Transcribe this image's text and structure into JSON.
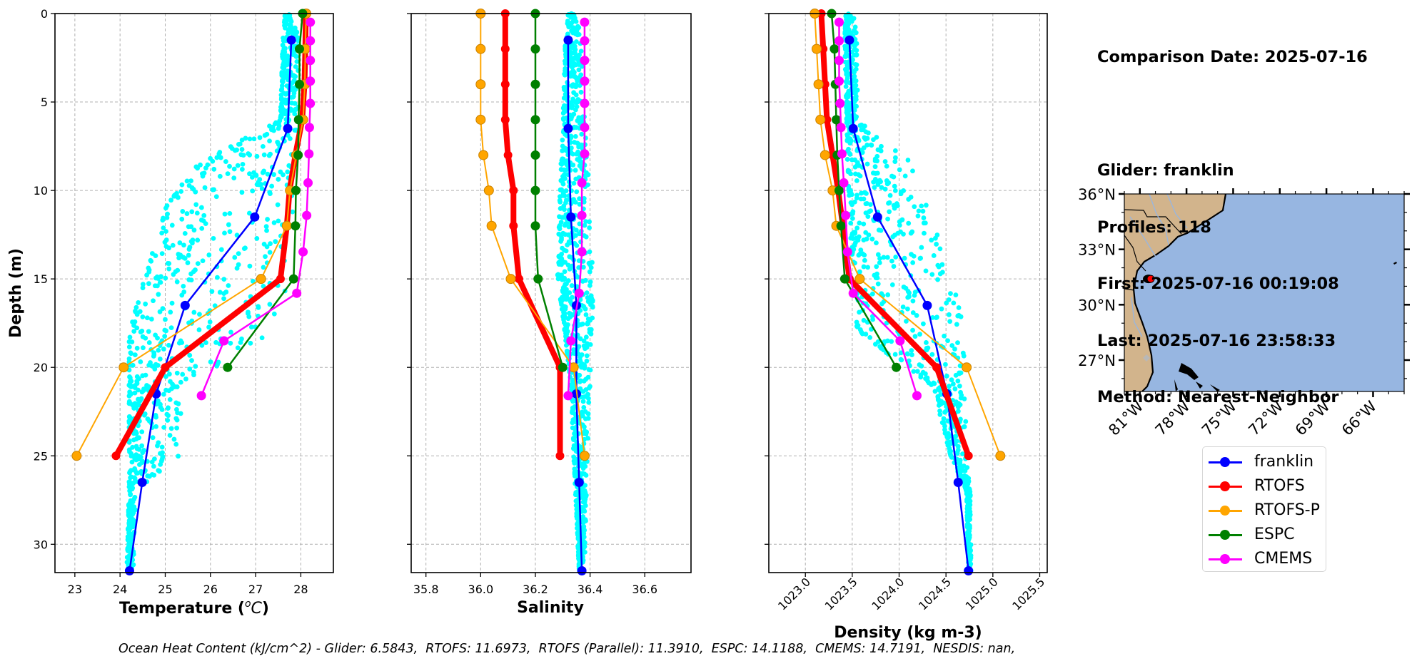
{
  "info": {
    "comparison_date": "Comparison Date: 2025-07-16",
    "glider": "Glider: franklin",
    "profiles": "Profiles: 118",
    "first": "First: 2025-07-16 00:19:08",
    "last": "Last: 2025-07-16 23:58:33",
    "method": "Method: Nearest-Neighbor"
  },
  "footnote": "Ocean Heat Content (kJ/cm^2) - Glider: 6.5843,  RTOFS: 11.6973,  RTOFS (Parallel): 11.3910,  ESPC: 14.1188,  CMEMS: 14.7191,  NESDIS: nan,",
  "legend": [
    {
      "name": "franklin",
      "color": "#0000ff"
    },
    {
      "name": "RTOFS",
      "color": "#ff0000"
    },
    {
      "name": "RTOFS-P",
      "color": "#ffa500"
    },
    {
      "name": "ESPC",
      "color": "#008000"
    },
    {
      "name": "CMEMS",
      "color": "#ff00ff"
    }
  ],
  "colors": {
    "glider_obs": "#00ffff",
    "grid": "#b0b0b0",
    "ocean": "#97b6e1",
    "land": "#d2b48c",
    "rivers": "#97b6e1",
    "glider_marker": "#ff0000"
  },
  "map": {
    "lat_ticks": [
      "36°N",
      "33°N",
      "30°N",
      "27°N"
    ],
    "lat_values": [
      36,
      33,
      30,
      27
    ],
    "lon_ticks": [
      "81°W",
      "78°W",
      "75°W",
      "72°W",
      "69°W",
      "66°W"
    ],
    "lon_values": [
      -81,
      -78,
      -75,
      -72,
      -69,
      -66
    ],
    "extent": {
      "lon_min": -82.0,
      "lon_max": -64.0,
      "lat_min": 25.3,
      "lat_max": 36.0
    },
    "glider_position": {
      "lat": 31.4,
      "lon": -80.3
    }
  },
  "chart_data": [
    {
      "type": "line",
      "panel": "temperature",
      "xlabel": "Temperature (°C)",
      "xlabel_main": "Temperature (",
      "xlabel_unit": "oC",
      "ylabel": "Depth (m)",
      "xlim": [
        22.56,
        28.72
      ],
      "ylim": [
        31.6,
        0
      ],
      "xticks": [
        23,
        24,
        25,
        26,
        27,
        28
      ],
      "xtick_labels": [
        "23",
        "24",
        "25",
        "26",
        "27",
        "28"
      ],
      "yticks": [
        0,
        5,
        10,
        15,
        20,
        25,
        30
      ],
      "ytick_labels": [
        "0",
        "5",
        "10",
        "15",
        "20",
        "25",
        "30"
      ],
      "grid": true,
      "scatter_envelope": [
        {
          "depth": 0.0,
          "min": 27.65,
          "max": 27.95
        },
        {
          "depth": 1.5,
          "min": 27.6,
          "max": 27.95
        },
        {
          "depth": 6.0,
          "min": 27.55,
          "max": 27.95
        },
        {
          "depth": 8.5,
          "min": 25.7,
          "max": 27.9
        },
        {
          "depth": 11.0,
          "min": 25.0,
          "max": 27.9
        },
        {
          "depth": 14.5,
          "min": 24.6,
          "max": 27.8
        },
        {
          "depth": 18.0,
          "min": 24.2,
          "max": 27.5
        },
        {
          "depth": 21.0,
          "min": 24.2,
          "max": 25.4
        },
        {
          "depth": 25.0,
          "min": 24.2,
          "max": 25.3
        },
        {
          "depth": 27.0,
          "min": 24.2,
          "max": 24.35
        },
        {
          "depth": 31.5,
          "min": 24.15,
          "max": 24.3
        }
      ],
      "series": [
        {
          "name": "franklin",
          "depth": [
            1.5,
            6.5,
            11.5,
            16.5,
            21.5,
            26.5,
            31.5
          ],
          "values": [
            27.79,
            27.71,
            26.98,
            25.44,
            24.8,
            24.49,
            24.21
          ]
        },
        {
          "name": "RTOFS",
          "depth": [
            0,
            2,
            4,
            6,
            8,
            10,
            12,
            15,
            20,
            25
          ],
          "values": [
            28.11,
            28.1,
            28.08,
            28.03,
            27.88,
            27.75,
            27.69,
            27.55,
            25.0,
            23.91
          ]
        },
        {
          "name": "RTOFS-P",
          "depth": [
            0,
            2,
            4,
            6,
            8,
            10,
            12,
            15,
            20,
            25
          ],
          "values": [
            28.12,
            28.1,
            28.09,
            28.05,
            27.9,
            27.76,
            27.69,
            27.12,
            24.08,
            23.04
          ]
        },
        {
          "name": "ESPC",
          "depth": [
            0,
            2,
            4,
            6,
            8,
            10,
            12,
            15,
            20
          ],
          "values": [
            28.04,
            27.97,
            27.97,
            27.95,
            27.94,
            27.89,
            27.88,
            27.84,
            26.38
          ]
        },
        {
          "name": "CMEMS",
          "depth": [
            0.49,
            1.54,
            2.65,
            3.82,
            5.08,
            6.44,
            7.93,
            9.57,
            11.41,
            13.47,
            15.81,
            18.5,
            21.6
          ],
          "values": [
            28.21,
            28.21,
            28.21,
            28.21,
            28.21,
            28.19,
            28.18,
            28.16,
            28.13,
            28.05,
            27.91,
            26.3,
            25.8
          ]
        }
      ]
    },
    {
      "type": "line",
      "panel": "salinity",
      "xlabel": "Salinity",
      "xlim": [
        35.746,
        36.769
      ],
      "ylim": [
        31.6,
        0
      ],
      "xticks": [
        35.8,
        36.0,
        36.2,
        36.4,
        36.6
      ],
      "xtick_labels": [
        "35.8",
        "36.0",
        "36.2",
        "36.4",
        "36.6"
      ],
      "yticks": [
        0,
        5,
        10,
        15,
        20,
        25,
        30
      ],
      "grid": true,
      "scatter_envelope": [
        {
          "depth": 0.0,
          "min": 36.32,
          "max": 36.36
        },
        {
          "depth": 1.5,
          "min": 36.31,
          "max": 36.37
        },
        {
          "depth": 6.0,
          "min": 36.3,
          "max": 36.38
        },
        {
          "depth": 10.0,
          "min": 36.29,
          "max": 36.4
        },
        {
          "depth": 15.0,
          "min": 36.28,
          "max": 36.41
        },
        {
          "depth": 17.0,
          "min": 36.3,
          "max": 36.41
        },
        {
          "depth": 21.0,
          "min": 36.33,
          "max": 36.4
        },
        {
          "depth": 25.0,
          "min": 36.34,
          "max": 36.39
        },
        {
          "depth": 31.5,
          "min": 36.36,
          "max": 36.38
        }
      ],
      "series": [
        {
          "name": "franklin",
          "depth": [
            1.5,
            6.5,
            11.5,
            16.5,
            21.5,
            26.5,
            31.5
          ],
          "values": [
            36.32,
            36.32,
            36.33,
            36.35,
            36.35,
            36.36,
            36.37
          ]
        },
        {
          "name": "RTOFS",
          "depth": [
            0,
            2,
            4,
            6,
            8,
            10,
            12,
            15,
            20,
            25
          ],
          "values": [
            36.09,
            36.09,
            36.09,
            36.09,
            36.1,
            36.12,
            36.12,
            36.14,
            36.29,
            36.29
          ]
        },
        {
          "name": "RTOFS-P",
          "depth": [
            0,
            2,
            4,
            6,
            8,
            10,
            12,
            15,
            20,
            25
          ],
          "values": [
            36.0,
            36.0,
            36.0,
            36.0,
            36.01,
            36.03,
            36.04,
            36.11,
            36.34,
            36.38
          ]
        },
        {
          "name": "ESPC",
          "depth": [
            0,
            2,
            4,
            6,
            8,
            10,
            12,
            15,
            20
          ],
          "values": [
            36.2,
            36.2,
            36.2,
            36.2,
            36.2,
            36.2,
            36.2,
            36.21,
            36.3
          ]
        },
        {
          "name": "CMEMS",
          "depth": [
            0.49,
            1.54,
            2.65,
            3.82,
            5.08,
            6.44,
            7.93,
            9.57,
            11.41,
            13.47,
            15.81,
            18.5,
            21.6
          ],
          "values": [
            36.38,
            36.38,
            36.38,
            36.38,
            36.38,
            36.38,
            36.38,
            36.37,
            36.37,
            36.37,
            36.36,
            36.33,
            36.32
          ]
        }
      ]
    },
    {
      "type": "line",
      "panel": "density",
      "xlabel": "Density (kg m-3)",
      "xlim": [
        1022.61,
        1025.58
      ],
      "ylim": [
        31.6,
        0
      ],
      "xticks": [
        1023.0,
        1023.5,
        1024.0,
        1024.5,
        1025.0,
        1025.5
      ],
      "xtick_labels": [
        "1023.0",
        "1023.5",
        "1024.0",
        "1024.5",
        "1025.0",
        "1025.5"
      ],
      "yticks": [
        0,
        5,
        10,
        15,
        20,
        25,
        30
      ],
      "grid": true,
      "scatter_envelope": [
        {
          "depth": 0.0,
          "min": 1023.43,
          "max": 1023.52
        },
        {
          "depth": 1.5,
          "min": 1023.42,
          "max": 1023.55
        },
        {
          "depth": 6.0,
          "min": 1023.44,
          "max": 1023.56
        },
        {
          "depth": 8.5,
          "min": 1023.45,
          "max": 1024.15
        },
        {
          "depth": 11.0,
          "min": 1023.47,
          "max": 1024.3
        },
        {
          "depth": 14.5,
          "min": 1023.5,
          "max": 1024.55
        },
        {
          "depth": 18.0,
          "min": 1023.55,
          "max": 1024.7
        },
        {
          "depth": 21.0,
          "min": 1024.35,
          "max": 1024.7
        },
        {
          "depth": 25.0,
          "min": 1024.55,
          "max": 1024.72
        },
        {
          "depth": 27.0,
          "min": 1024.72,
          "max": 1024.76
        },
        {
          "depth": 31.5,
          "min": 1024.74,
          "max": 1024.77
        }
      ],
      "series": [
        {
          "name": "franklin",
          "depth": [
            1.5,
            6.5,
            11.5,
            16.5,
            21.5,
            26.5,
            31.5
          ],
          "values": [
            1023.47,
            1023.51,
            1023.77,
            1024.3,
            1024.51,
            1024.63,
            1024.74
          ]
        },
        {
          "name": "RTOFS",
          "depth": [
            0,
            2,
            4,
            6,
            8,
            10,
            12,
            15,
            20,
            25
          ],
          "values": [
            1023.17,
            1023.19,
            1023.21,
            1023.23,
            1023.29,
            1023.35,
            1023.4,
            1023.47,
            1024.4,
            1024.74
          ]
        },
        {
          "name": "RTOFS-P",
          "depth": [
            0,
            2,
            4,
            6,
            8,
            10,
            12,
            15,
            20,
            25
          ],
          "values": [
            1023.1,
            1023.12,
            1023.14,
            1023.16,
            1023.21,
            1023.29,
            1023.33,
            1023.58,
            1024.72,
            1025.08
          ]
        },
        {
          "name": "ESPC",
          "depth": [
            0,
            2,
            4,
            6,
            8,
            10,
            12,
            15,
            20
          ],
          "values": [
            1023.28,
            1023.31,
            1023.32,
            1023.33,
            1023.34,
            1023.36,
            1023.38,
            1023.42,
            1023.97
          ]
        },
        {
          "name": "CMEMS",
          "depth": [
            0.49,
            1.54,
            2.65,
            3.82,
            5.08,
            6.44,
            7.93,
            9.57,
            11.41,
            13.47,
            15.81,
            18.5,
            21.6
          ],
          "values": [
            1023.36,
            1023.36,
            1023.36,
            1023.36,
            1023.37,
            1023.38,
            1023.39,
            1023.41,
            1023.43,
            1023.45,
            1023.51,
            1024.01,
            1024.19
          ]
        }
      ]
    }
  ]
}
